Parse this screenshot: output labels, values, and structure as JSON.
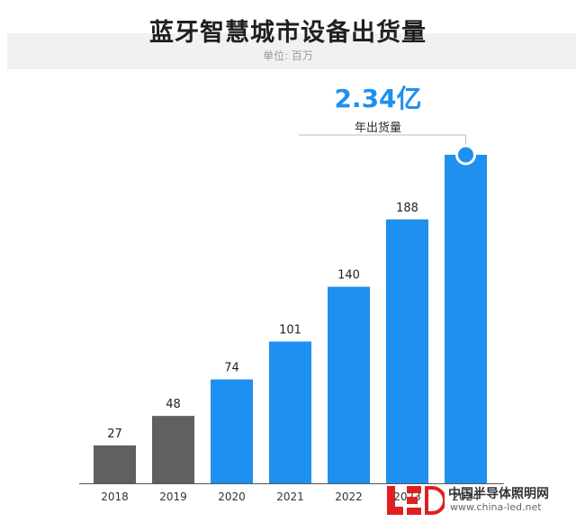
{
  "chart_data": {
    "type": "bar",
    "title": "蓝牙智慧城市设备出货量",
    "subtitle": "单位: 百万",
    "categories": [
      "2018",
      "2019",
      "2020",
      "2021",
      "2022",
      "2023",
      "2024"
    ],
    "values": [
      27,
      48,
      74,
      101,
      140,
      188,
      234
    ],
    "value_labels": [
      "27",
      "48",
      "74",
      "101",
      "140",
      "188",
      ""
    ],
    "bar_colors": [
      "#606060",
      "#606060",
      "#1e90ef",
      "#1e90ef",
      "#1e90ef",
      "#1e90ef",
      "#1e90ef"
    ],
    "ylim": [
      0,
      250
    ],
    "grid": false,
    "highlight": {
      "value": "2.34亿",
      "label": "年出货量"
    }
  },
  "colors": {
    "accent": "#1e90ef",
    "historical": "#606060"
  },
  "watermark": {
    "text": "中国半导体照明网",
    "url": "www.china-led.net",
    "logo": "LED"
  }
}
